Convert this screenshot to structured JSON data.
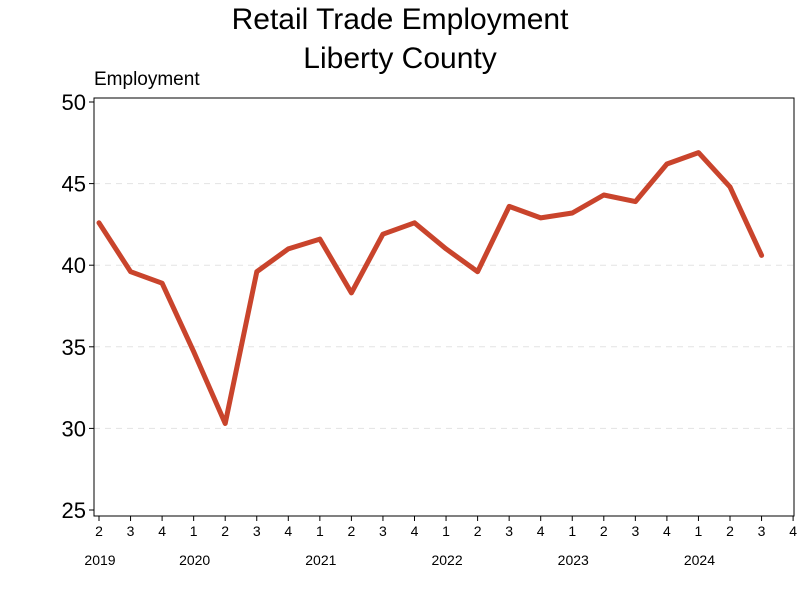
{
  "chart_data": {
    "type": "line",
    "title_line1": "Retail Trade Employment",
    "title_line2": "Liberty County",
    "ylabel": "Employment",
    "xlabel": "",
    "ylim": [
      25,
      50
    ],
    "yticks": [
      25,
      30,
      35,
      40,
      45,
      50
    ],
    "grid": "horizontal dashed",
    "legend": "none",
    "x_quarter_labels": [
      "2",
      "3",
      "4",
      "1",
      "2",
      "3",
      "4",
      "1",
      "2",
      "3",
      "4",
      "1",
      "2",
      "3",
      "4",
      "1",
      "2",
      "3",
      "4",
      "1",
      "2",
      "3",
      "4"
    ],
    "year_labels": [
      {
        "year": "2019",
        "quarter_index": 0
      },
      {
        "year": "2020",
        "quarter_index": 3
      },
      {
        "year": "2021",
        "quarter_index": 7
      },
      {
        "year": "2022",
        "quarter_index": 11
      },
      {
        "year": "2023",
        "quarter_index": 15
      },
      {
        "year": "2024",
        "quarter_index": 19
      }
    ],
    "series": [
      {
        "color": "#c9442c",
        "x": [
          "2019 Q2",
          "2019 Q3",
          "2019 Q4",
          "2020 Q1",
          "2020 Q2",
          "2020 Q3",
          "2020 Q4",
          "2021 Q1",
          "2021 Q2",
          "2021 Q3",
          "2021 Q4",
          "2022 Q1",
          "2022 Q2",
          "2022 Q3",
          "2022 Q4",
          "2023 Q1",
          "2023 Q2",
          "2023 Q3",
          "2023 Q4",
          "2024 Q1",
          "2024 Q2",
          "2024 Q3"
        ],
        "values": [
          42.6,
          39.6,
          38.9,
          34.7,
          30.3,
          39.6,
          41.0,
          41.6,
          38.3,
          41.9,
          42.6,
          41.0,
          39.6,
          43.6,
          42.9,
          43.2,
          44.3,
          43.9,
          46.2,
          46.9,
          44.8,
          40.6
        ]
      }
    ]
  }
}
